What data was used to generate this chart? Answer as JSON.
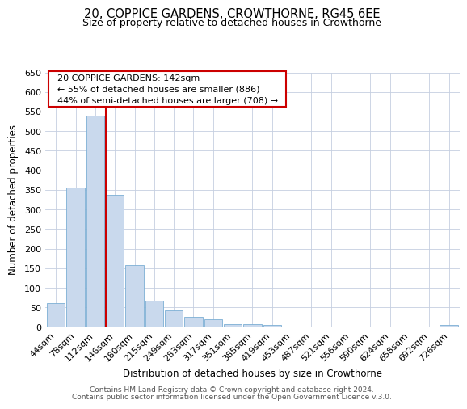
{
  "title": "20, COPPICE GARDENS, CROWTHORNE, RG45 6EE",
  "subtitle": "Size of property relative to detached houses in Crowthorne",
  "xlabel": "Distribution of detached houses by size in Crowthorne",
  "ylabel": "Number of detached properties",
  "bin_labels": [
    "44sqm",
    "78sqm",
    "112sqm",
    "146sqm",
    "180sqm",
    "215sqm",
    "249sqm",
    "283sqm",
    "317sqm",
    "351sqm",
    "385sqm",
    "419sqm",
    "453sqm",
    "487sqm",
    "521sqm",
    "556sqm",
    "590sqm",
    "624sqm",
    "658sqm",
    "692sqm",
    "726sqm"
  ],
  "bar_values": [
    60,
    355,
    540,
    338,
    157,
    68,
    42,
    25,
    20,
    8,
    8,
    6,
    0,
    0,
    0,
    0,
    0,
    0,
    0,
    0,
    5
  ],
  "bar_color": "#c9d9ed",
  "bar_edge_color": "#7bafd4",
  "ylim": [
    0,
    650
  ],
  "yticks": [
    0,
    50,
    100,
    150,
    200,
    250,
    300,
    350,
    400,
    450,
    500,
    550,
    600,
    650
  ],
  "property_line_color": "#cc0000",
  "annotation_title": "20 COPPICE GARDENS: 142sqm",
  "annotation_line1": "← 55% of detached houses are smaller (886)",
  "annotation_line2": "44% of semi-detached houses are larger (708) →",
  "annotation_box_color": "#ffffff",
  "annotation_box_edge": "#cc0000",
  "footer_line1": "Contains HM Land Registry data © Crown copyright and database right 2024.",
  "footer_line2": "Contains public sector information licensed under the Open Government Licence v.3.0.",
  "background_color": "#ffffff",
  "grid_color": "#c5cfe0"
}
